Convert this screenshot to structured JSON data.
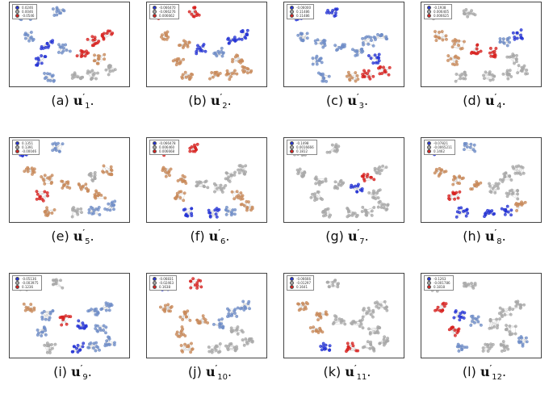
{
  "colors": {
    "low": "#2433d6",
    "mid": "#a8a8a8",
    "high": "#d8201e"
  },
  "panels": [
    {
      "caption": {
        "label": "(a)",
        "sub": "1"
      },
      "legend": [
        "0.0246",
        "0.0046",
        "-0.0546"
      ]
    },
    {
      "caption": {
        "label": "(b)",
        "sub": "2"
      },
      "legend": [
        "-0.066470",
        "-0.066276",
        "0.006662"
      ]
    },
    {
      "caption": {
        "label": "(c)",
        "sub": "3"
      },
      "legend": [
        "-0.06000",
        "0.11486",
        "0.11486"
      ]
    },
    {
      "caption": {
        "label": "(d)",
        "sub": "4"
      },
      "legend": [
        "-0.1938",
        "0.006405",
        "0.006625"
      ]
    },
    {
      "caption": {
        "label": "(e)",
        "sub": "5"
      },
      "legend": [
        "0.1351",
        "0.1391",
        "-0.00046"
      ]
    },
    {
      "caption": {
        "label": "(f)",
        "sub": "6"
      },
      "legend": [
        "-0.066478",
        "0.006460",
        "0.006668"
      ]
    },
    {
      "caption": {
        "label": "(g)",
        "sub": "7"
      },
      "legend": [
        "-0.1498",
        "0.0016666",
        "0.1812"
      ]
    },
    {
      "caption": {
        "label": "(h)",
        "sub": "8"
      },
      "legend": [
        "-0.07821",
        "-0.0065211",
        "0.1462"
      ]
    },
    {
      "caption": {
        "label": "(i)",
        "sub": "9"
      },
      "legend": [
        "-0.05136",
        "-0.003975",
        "0.1236"
      ]
    },
    {
      "caption": {
        "label": "(j)",
        "sub": "10"
      },
      "legend": [
        "-0.06831",
        "-0.02463",
        "0.1638"
      ]
    },
    {
      "caption": {
        "label": "(k)",
        "sub": "11"
      },
      "legend": [
        "-0.06666",
        "-0.01297",
        "0.1641"
      ]
    },
    {
      "caption": {
        "label": "(l)",
        "sub": "12"
      },
      "legend": [
        "-0.1263",
        "-0.001786",
        "0.1818"
      ]
    }
  ]
}
